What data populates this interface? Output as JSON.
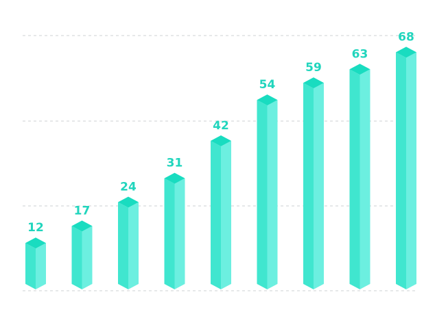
{
  "chart_data": {
    "type": "bar",
    "style": "3d-column",
    "values": [
      12,
      17,
      24,
      31,
      42,
      54,
      59,
      63,
      68
    ],
    "data_labels": [
      "12",
      "17",
      "24",
      "31",
      "42",
      "54",
      "59",
      "63",
      "68"
    ],
    "ylim": [
      0,
      75
    ],
    "grid": true,
    "legend": "none"
  },
  "colors": {
    "top": "#19dcc0",
    "front": "#40e6cf",
    "side": "#6cefe0",
    "label": "#21d5bd",
    "grid": "#d6d9dc"
  }
}
